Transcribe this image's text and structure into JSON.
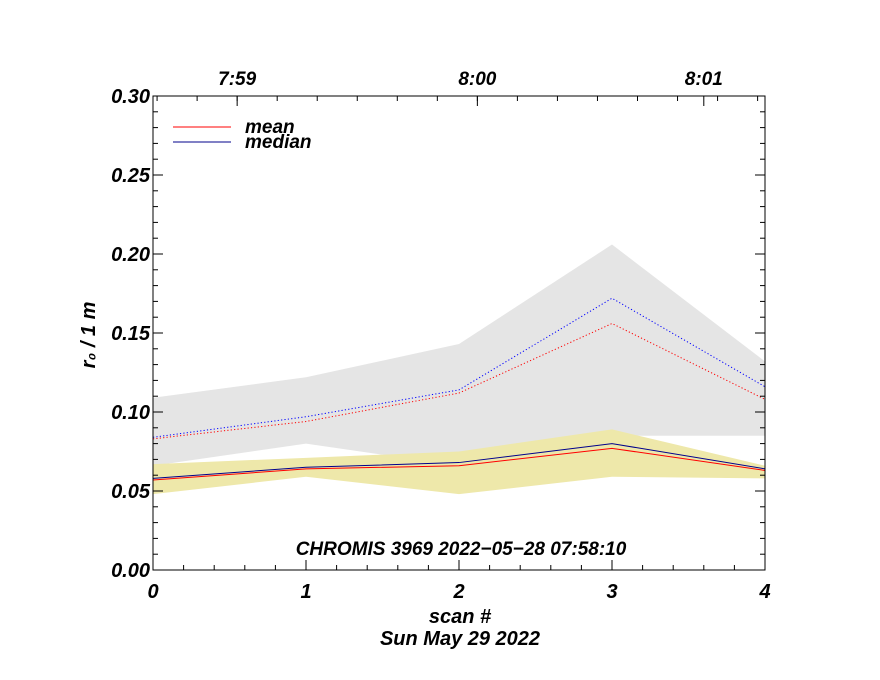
{
  "chart_data": {
    "type": "line",
    "xlabel": "scan #",
    "ylabel": "r₀ / 1 m",
    "date_label": "Sun May 29 2022",
    "annotation": "CHROMIS 3969 2022−05−28 07:58:10",
    "xlim": [
      0,
      4
    ],
    "ylim": [
      0.0,
      0.3
    ],
    "x": [
      0,
      1,
      2,
      3,
      4
    ],
    "x_tick_labels": [
      "0",
      "1",
      "2",
      "3",
      "4"
    ],
    "y_ticks": [
      0.0,
      0.05,
      0.1,
      0.15,
      0.2,
      0.25,
      0.3
    ],
    "y_tick_labels": [
      "0.00",
      "0.05",
      "0.10",
      "0.15",
      "0.20",
      "0.25",
      "0.30"
    ],
    "top_axis": [
      {
        "x": 0.55,
        "label": "7:59"
      },
      {
        "x": 2.12,
        "label": "8:00"
      },
      {
        "x": 3.6,
        "label": "8:01"
      }
    ],
    "legend": [
      {
        "label": "mean",
        "color": "#ff0000"
      },
      {
        "label": "median",
        "color": "#00008b"
      }
    ],
    "bands": [
      {
        "name": "upper-spread",
        "color": "#e5e5e5",
        "upper": [
          0.109,
          0.122,
          0.143,
          0.206,
          0.132
        ],
        "lower": [
          0.066,
          0.08,
          0.066,
          0.085,
          0.085
        ]
      },
      {
        "name": "lower-spread",
        "color": "#eee8aa",
        "upper": [
          0.067,
          0.071,
          0.075,
          0.089,
          0.066
        ],
        "lower": [
          0.048,
          0.059,
          0.048,
          0.059,
          0.058
        ]
      }
    ],
    "series": [
      {
        "name": "mean",
        "color": "#ff0000",
        "style": "dotted",
        "values": [
          0.083,
          0.094,
          0.112,
          0.156,
          0.108
        ]
      },
      {
        "name": "median",
        "color": "#0000ff",
        "style": "dotted",
        "values": [
          0.084,
          0.097,
          0.114,
          0.172,
          0.116
        ]
      },
      {
        "name": "mean",
        "color": "#ff0000",
        "style": "solid",
        "values": [
          0.057,
          0.064,
          0.066,
          0.077,
          0.063
        ]
      },
      {
        "name": "median",
        "color": "#00008b",
        "style": "solid",
        "values": [
          0.058,
          0.065,
          0.068,
          0.08,
          0.064
        ]
      }
    ]
  }
}
